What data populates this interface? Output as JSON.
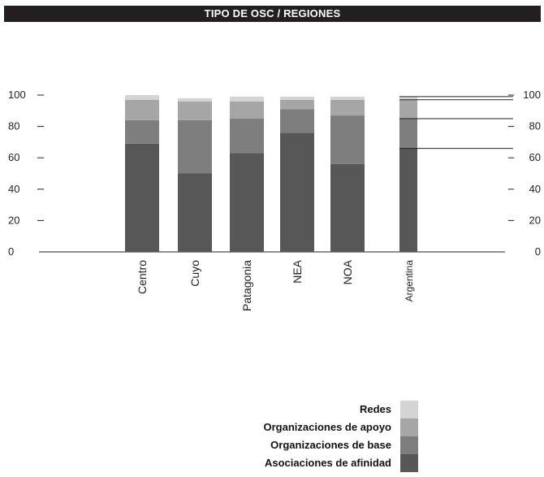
{
  "title": "TIPO DE OSC / REGIONES",
  "colors": {
    "redes": "#d4d4d4",
    "organizaciones_apoyo": "#a6a6a6",
    "organizaciones_base": "#7e7e7e",
    "asociaciones_afinidad": "#575757"
  },
  "legend": [
    {
      "label": "Redes",
      "color": "#d4d4d4"
    },
    {
      "label": "Organizaciones de apoyo",
      "color": "#a6a6a6"
    },
    {
      "label": "Organizaciones de base",
      "color": "#7e7e7e"
    },
    {
      "label": "Asociaciones de afinidad",
      "color": "#575757"
    }
  ],
  "chart_data": {
    "type": "bar",
    "stacked": true,
    "title": "TIPO DE OSC / REGIONES",
    "categories": [
      "Centro",
      "Cuyo",
      "Patagonia",
      "NEA",
      "NOA",
      "Argentina"
    ],
    "series": [
      {
        "name": "Asociaciones de afinidad",
        "values": [
          69,
          50,
          63,
          76,
          56,
          66
        ]
      },
      {
        "name": "Organizaciones de base",
        "values": [
          15,
          34,
          22,
          15,
          31,
          19
        ]
      },
      {
        "name": "Organizaciones de apoyo",
        "values": [
          13,
          12,
          11,
          6,
          10,
          12
        ]
      },
      {
        "name": "Redes",
        "values": [
          3,
          2,
          3,
          2,
          2,
          2
        ]
      }
    ],
    "yticks": [
      "0",
      "20",
      "40",
      "60",
      "80",
      "100"
    ],
    "ylim": [
      0,
      100
    ],
    "right_axis": true,
    "grid": false,
    "legend_position": "bottom-right"
  }
}
